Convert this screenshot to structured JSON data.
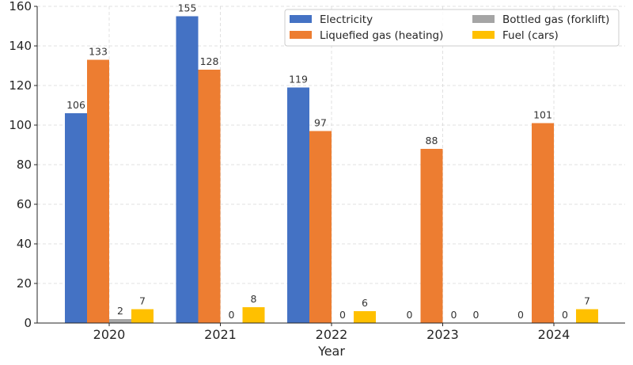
{
  "chart_data": {
    "type": "bar",
    "categories": [
      "2020",
      "2021",
      "2022",
      "2023",
      "2024"
    ],
    "series": [
      {
        "name": "Electricity",
        "color": "#4472c4",
        "values": [
          106,
          155,
          119,
          0,
          0
        ],
        "labels": [
          "106",
          "155",
          "119",
          "0",
          "0"
        ]
      },
      {
        "name": "Liquefied gas (heating)",
        "color": "#ed7d31",
        "values": [
          133,
          128,
          97,
          88,
          101
        ],
        "labels": [
          "133",
          "128",
          "97",
          "88",
          "101"
        ]
      },
      {
        "name": "Bottled gas (forklift)",
        "color": "#a5a5a5",
        "values": [
          2,
          0,
          0,
          0,
          0
        ],
        "labels": [
          "2",
          "0",
          "0",
          "0",
          "0"
        ]
      },
      {
        "name": "Fuel (cars)",
        "color": "#ffc000",
        "values": [
          7,
          8,
          6,
          0,
          7
        ],
        "labels": [
          "7",
          "8",
          "6",
          "0",
          "7"
        ]
      }
    ],
    "xlabel": "Year",
    "ylabel": "",
    "ylim": [
      0,
      160
    ],
    "yticks": [
      "0",
      "20",
      "40",
      "60",
      "80",
      "100",
      "120",
      "140",
      "160"
    ],
    "grid": true,
    "legend_position": "top-right"
  }
}
